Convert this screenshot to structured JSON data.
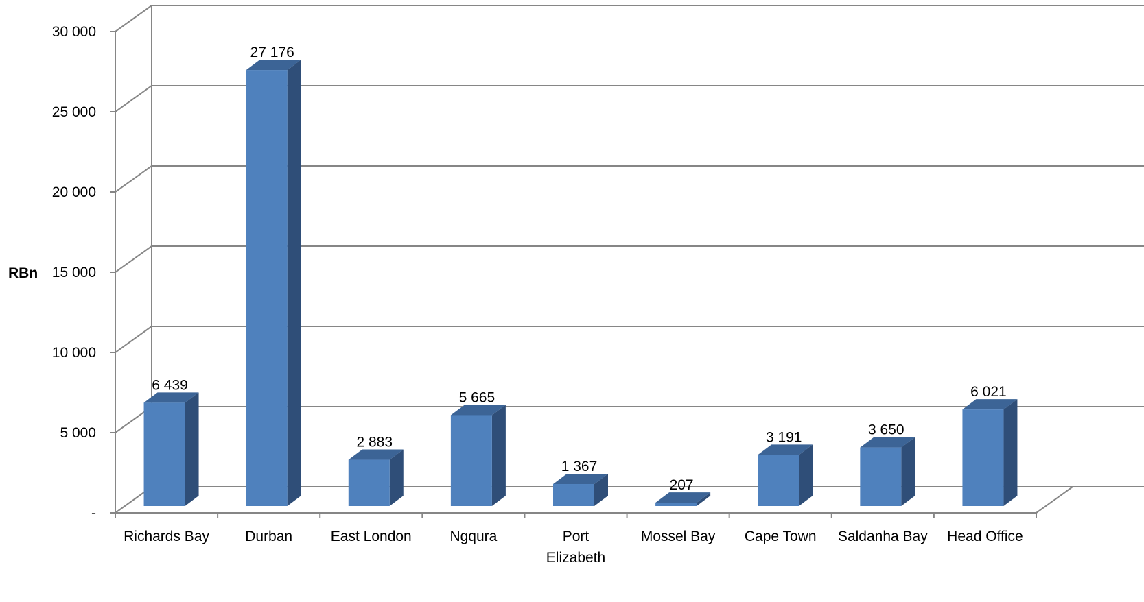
{
  "chart_data": {
    "type": "bar",
    "title": "",
    "xlabel": "",
    "ylabel": "RBn",
    "categories": [
      "Richards Bay",
      "Durban",
      "East London",
      "Ngqura",
      "Port Elizabeth",
      "Mossel Bay",
      "Cape Town",
      "Saldanha Bay",
      "Head Office"
    ],
    "values": [
      6439,
      27176,
      2883,
      5665,
      1367,
      207,
      3191,
      3650,
      6021
    ],
    "data_labels": [
      "6 439",
      "27 176",
      "2 883",
      "5 665",
      "1 367",
      "207",
      "3 191",
      "3 650",
      "6 021"
    ],
    "ylim": [
      0,
      30000
    ],
    "yticks": [
      0,
      5000,
      10000,
      15000,
      20000,
      25000,
      30000
    ],
    "ytick_labels": [
      "-",
      "5 000",
      "10 000",
      "15 000",
      "20 000",
      "25 000",
      "30 000"
    ],
    "grid": true,
    "style": "3d-column",
    "legend": "none",
    "colors": {
      "bar_front": "#4f81bd",
      "bar_top": "#3c6496",
      "bar_side": "#2f4e78",
      "grid": "#868686",
      "text": "#000000"
    }
  }
}
